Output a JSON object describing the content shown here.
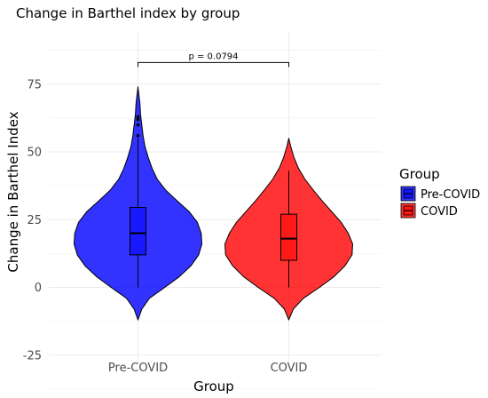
{
  "chart_data": {
    "type": "violin",
    "title": "Change in Barthel index by group",
    "xlabel": "Group",
    "ylabel": "Change in Barthel Index",
    "categories": [
      "Pre-COVID",
      "COVID"
    ],
    "ylim": [
      -30,
      95
    ],
    "yticks": [
      -25,
      0,
      25,
      50,
      75
    ],
    "grid": true,
    "legend": {
      "title": "Group",
      "position": "right",
      "entries": [
        {
          "label": "Pre-COVID",
          "color": "#0000ff"
        },
        {
          "label": "COVID",
          "color": "#ff0000"
        }
      ]
    },
    "annotation": {
      "text": "p = 0.0794",
      "between": [
        "Pre-COVID",
        "COVID"
      ],
      "y": 83
    },
    "series": [
      {
        "name": "Pre-COVID",
        "color": "#0000ff",
        "min": -12,
        "max": 74,
        "box": {
          "q1": 12,
          "median": 20,
          "q3": 29.5,
          "whisker_low": 0,
          "whisker_high": 55
        },
        "outliers": [
          56,
          60,
          62,
          63
        ],
        "density": [
          [
            -12,
            0.0
          ],
          [
            -8,
            0.06
          ],
          [
            -4,
            0.18
          ],
          [
            0,
            0.42
          ],
          [
            4,
            0.65
          ],
          [
            8,
            0.83
          ],
          [
            12,
            0.95
          ],
          [
            16,
            1.0
          ],
          [
            20,
            0.99
          ],
          [
            24,
            0.93
          ],
          [
            28,
            0.8
          ],
          [
            32,
            0.61
          ],
          [
            36,
            0.43
          ],
          [
            40,
            0.3
          ],
          [
            44,
            0.22
          ],
          [
            48,
            0.16
          ],
          [
            52,
            0.11
          ],
          [
            56,
            0.08
          ],
          [
            60,
            0.06
          ],
          [
            64,
            0.04
          ],
          [
            68,
            0.03
          ],
          [
            72,
            0.01
          ],
          [
            74,
            0.0
          ]
        ]
      },
      {
        "name": "COVID",
        "color": "#ff0000",
        "min": -12,
        "max": 55,
        "box": {
          "q1": 10,
          "median": 18,
          "q3": 27,
          "whisker_low": 0,
          "whisker_high": 43
        },
        "outliers": [],
        "density": [
          [
            -12,
            0.0
          ],
          [
            -8,
            0.07
          ],
          [
            -4,
            0.23
          ],
          [
            0,
            0.48
          ],
          [
            4,
            0.71
          ],
          [
            8,
            0.88
          ],
          [
            12,
            0.99
          ],
          [
            16,
            1.0
          ],
          [
            20,
            0.93
          ],
          [
            24,
            0.82
          ],
          [
            28,
            0.67
          ],
          [
            32,
            0.52
          ],
          [
            36,
            0.38
          ],
          [
            40,
            0.25
          ],
          [
            44,
            0.15
          ],
          [
            48,
            0.08
          ],
          [
            52,
            0.03
          ],
          [
            55,
            0.0
          ]
        ]
      }
    ]
  }
}
